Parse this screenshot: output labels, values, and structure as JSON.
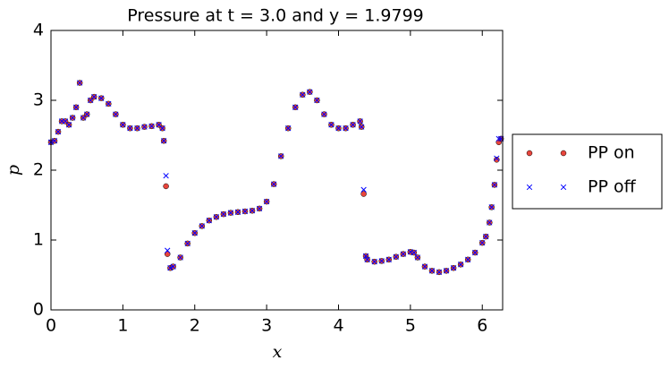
{
  "chart_data": {
    "type": "scatter",
    "title": "Pressure at t = 3.0 and y = 1.9799",
    "x_label": "x",
    "y_label": "p",
    "x": [
      0,
      0.05,
      0.1,
      0.15,
      0.2,
      0.25,
      0.3,
      0.35,
      0.4,
      0.45,
      0.5,
      0.55,
      0.6,
      0.7,
      0.8,
      0.9,
      1.0,
      1.1,
      1.2,
      1.3,
      1.4,
      1.5,
      1.55,
      1.57,
      1.6,
      1.62,
      1.66,
      1.7,
      1.8,
      1.9,
      2.0,
      2.1,
      2.2,
      2.3,
      2.4,
      2.5,
      2.6,
      2.7,
      2.8,
      2.9,
      3.0,
      3.1,
      3.2,
      3.3,
      3.4,
      3.5,
      3.6,
      3.7,
      3.8,
      3.9,
      4.0,
      4.1,
      4.2,
      4.3,
      4.32,
      4.35,
      4.38,
      4.4,
      4.5,
      4.6,
      4.7,
      4.8,
      4.9,
      5.0,
      5.05,
      5.1,
      5.2,
      5.3,
      5.4,
      5.5,
      5.6,
      5.7,
      5.8,
      5.9,
      6.0,
      6.05,
      6.1,
      6.13,
      6.17,
      6.2,
      6.23,
      6.26
    ],
    "series": [
      {
        "name": "PP on",
        "color": "#e8453c",
        "marker": "circle",
        "values": [
          2.4,
          2.42,
          2.55,
          2.7,
          2.7,
          2.65,
          2.75,
          2.9,
          3.25,
          2.75,
          2.8,
          3.0,
          3.05,
          3.03,
          2.95,
          2.8,
          2.65,
          2.6,
          2.6,
          2.62,
          2.63,
          2.65,
          2.6,
          2.42,
          1.77,
          0.8,
          0.6,
          0.62,
          0.75,
          0.95,
          1.1,
          1.2,
          1.28,
          1.33,
          1.37,
          1.39,
          1.4,
          1.41,
          1.42,
          1.45,
          1.55,
          1.8,
          2.2,
          2.6,
          2.9,
          3.08,
          3.12,
          3.0,
          2.8,
          2.65,
          2.6,
          2.6,
          2.65,
          2.7,
          2.62,
          1.66,
          0.77,
          0.72,
          0.69,
          0.7,
          0.72,
          0.76,
          0.8,
          0.83,
          0.82,
          0.75,
          0.62,
          0.56,
          0.54,
          0.56,
          0.6,
          0.65,
          0.72,
          0.82,
          0.96,
          1.05,
          1.25,
          1.47,
          1.79,
          2.15,
          2.4,
          2.45
        ]
      },
      {
        "name": "PP off",
        "color": "#0000ff",
        "marker": "x",
        "values": [
          2.4,
          2.42,
          2.55,
          2.7,
          2.7,
          2.65,
          2.75,
          2.9,
          3.25,
          2.75,
          2.8,
          3.0,
          3.05,
          3.03,
          2.95,
          2.8,
          2.65,
          2.6,
          2.6,
          2.62,
          2.63,
          2.65,
          2.6,
          2.42,
          1.92,
          0.85,
          0.6,
          0.62,
          0.75,
          0.95,
          1.1,
          1.2,
          1.28,
          1.33,
          1.37,
          1.39,
          1.4,
          1.41,
          1.42,
          1.45,
          1.55,
          1.8,
          2.2,
          2.6,
          2.9,
          3.08,
          3.12,
          3.0,
          2.8,
          2.65,
          2.6,
          2.6,
          2.65,
          2.7,
          2.62,
          1.72,
          0.77,
          0.72,
          0.69,
          0.7,
          0.72,
          0.76,
          0.8,
          0.83,
          0.82,
          0.75,
          0.62,
          0.56,
          0.54,
          0.56,
          0.6,
          0.65,
          0.72,
          0.82,
          0.96,
          1.05,
          1.25,
          1.47,
          1.79,
          2.17,
          2.45,
          2.45
        ]
      }
    ],
    "xlim": [
      0,
      6.2832
    ],
    "ylim": [
      0,
      4
    ],
    "xticks": [
      0,
      1,
      2,
      3,
      4,
      5,
      6
    ],
    "yticks": [
      0,
      1,
      2,
      3,
      4
    ],
    "grid": false,
    "legend": "outside right"
  }
}
